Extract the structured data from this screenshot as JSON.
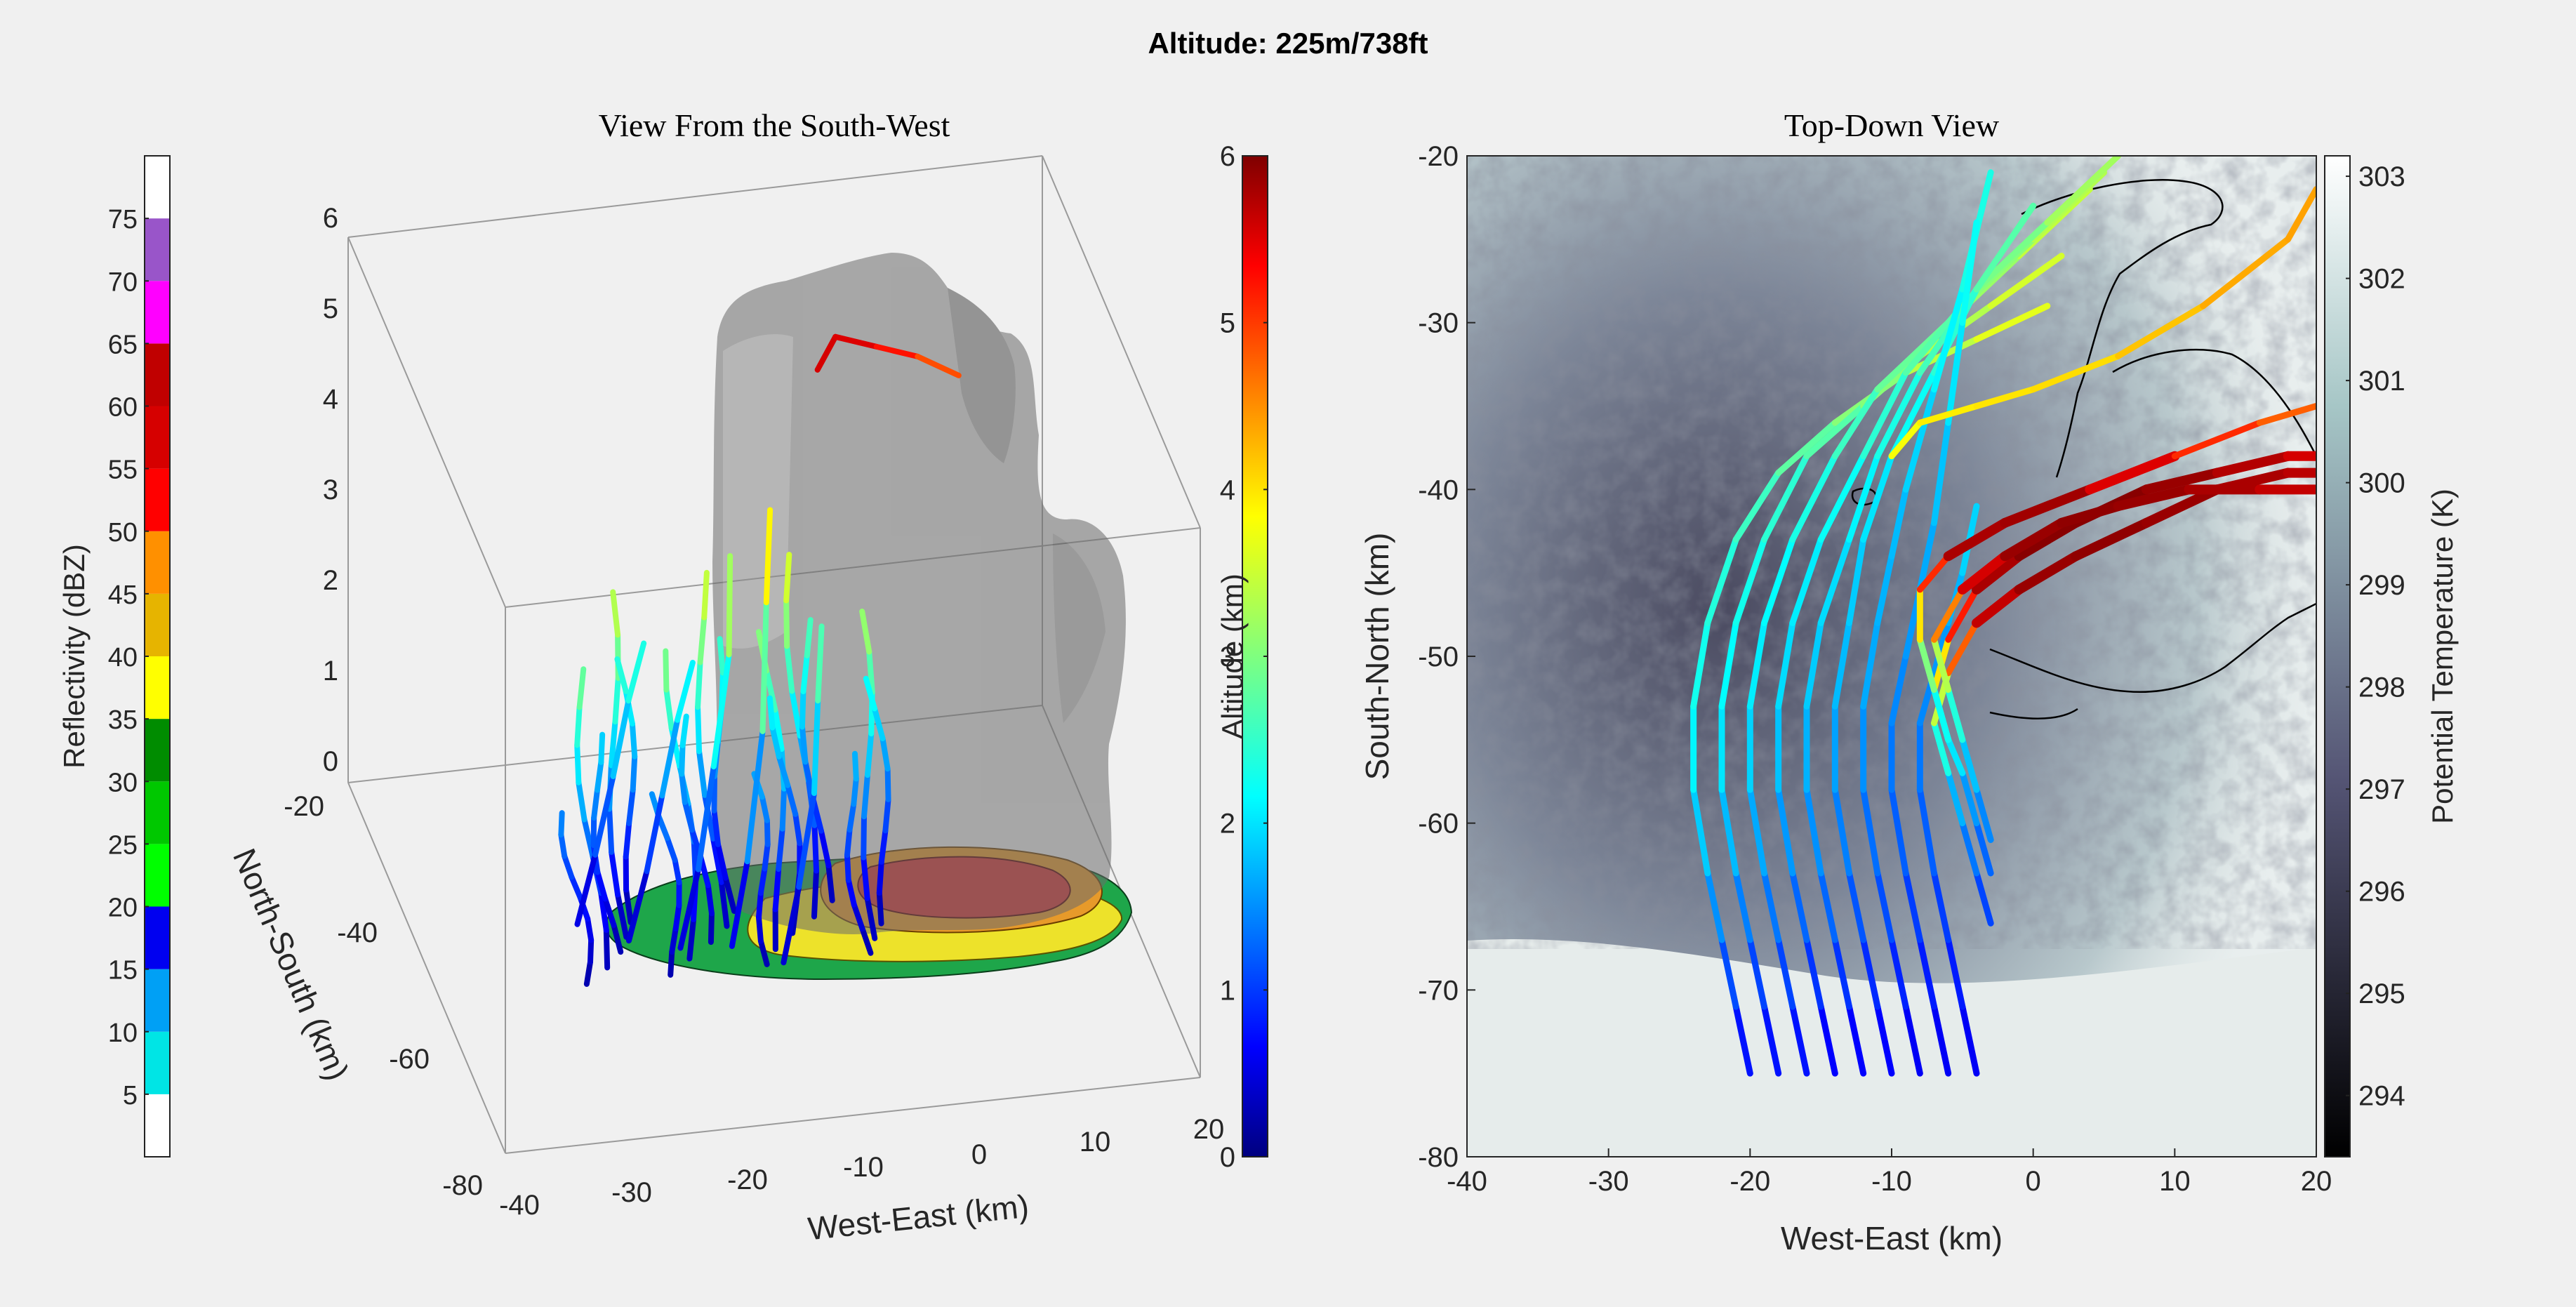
{
  "figure": {
    "suptitle": "Altitude: 225m/738ft",
    "background": "#f0f0f0"
  },
  "reflectivity_colorbar": {
    "label": "Reflectivity (dBZ)",
    "ticks": [
      "5",
      "10",
      "15",
      "20",
      "25",
      "30",
      "35",
      "40",
      "45",
      "50",
      "55",
      "60",
      "65",
      "70",
      "75"
    ],
    "levels": [
      0,
      5,
      10,
      15,
      20,
      25,
      30,
      35,
      40,
      45,
      50,
      55,
      60,
      65,
      70,
      75,
      80
    ],
    "colors": [
      "#ffffff",
      "#00e5e5",
      "#00a0f5",
      "#0000f0",
      "#00ff00",
      "#00c800",
      "#008c00",
      "#ffff00",
      "#e6b400",
      "#ff9000",
      "#ff0000",
      "#d60000",
      "#c00000",
      "#ff00ff",
      "#9955c9",
      "#ffffff"
    ]
  },
  "chart_data": [
    {
      "type": "scatter",
      "title": "View From the South-West",
      "xlabel": "West-East (km)",
      "ylabel": "North-South (km)",
      "zlabel": "",
      "xlim": [
        -40,
        20
      ],
      "ylim": [
        -80,
        -20
      ],
      "zlim": [
        0,
        6
      ],
      "xticks": [
        "-40",
        "-30",
        "-20",
        "-10",
        "0",
        "10",
        "20"
      ],
      "yticks": [
        "-80",
        "-60",
        "-40",
        "-20"
      ],
      "zticks": [
        "0",
        "1",
        "2",
        "3",
        "4",
        "5",
        "6"
      ],
      "series_note": "air-parcel trajectories coloured by altitude (km)",
      "trajectories": [
        {
          "x": [
            -27,
            -25,
            -23,
            -21,
            -19
          ],
          "y": [
            -50,
            -48,
            -46,
            -43,
            -40
          ],
          "z": [
            0.3,
            0.9,
            1.6,
            2.2,
            2.6
          ]
        },
        {
          "x": [
            -23,
            -21,
            -19,
            -17,
            -15
          ],
          "y": [
            -52,
            -50,
            -47,
            -44,
            -41
          ],
          "z": [
            0.2,
            0.8,
            1.4,
            2.0,
            2.4
          ]
        },
        {
          "x": [
            -19,
            -17,
            -15,
            -13,
            -12
          ],
          "y": [
            -54,
            -52,
            -49,
            -46,
            -42
          ],
          "z": [
            0.2,
            0.9,
            1.8,
            2.8,
            3.6
          ]
        },
        {
          "x": [
            -15,
            -13,
            -11,
            -10,
            -9
          ],
          "y": [
            -56,
            -53,
            -50,
            -47,
            -44
          ],
          "z": [
            0.3,
            1.0,
            2.2,
            3.4,
            4.2
          ]
        },
        {
          "x": [
            -11,
            -9,
            -7,
            -6,
            -5
          ],
          "y": [
            -58,
            -55,
            -52,
            -49,
            -46
          ],
          "z": [
            0.2,
            0.8,
            1.6,
            2.4,
            3.0
          ]
        },
        {
          "x": [
            -4,
            -2,
            2,
            6,
            10
          ],
          "y": [
            -40,
            -38,
            -36,
            -34,
            -32
          ],
          "z": [
            5.4,
            5.6,
            5.3,
            5.0,
            4.6
          ]
        }
      ]
    },
    {
      "type": "scatter",
      "title": "Top-Down View",
      "xlabel": "West-East (km)",
      "ylabel": "South-North (km)",
      "xlim": [
        -40,
        20
      ],
      "ylim": [
        -80,
        -20
      ],
      "xticks": [
        "-40",
        "-30",
        "-20",
        "-10",
        "0",
        "10",
        "20"
      ],
      "yticks": [
        "-80",
        "-70",
        "-60",
        "-50",
        "-40",
        "-30",
        "-20"
      ],
      "trajectories": [
        {
          "x": [
            -20,
            -21,
            -22,
            -23,
            -24,
            -24,
            -23,
            -21,
            -18,
            -14,
            -9,
            -4,
            1
          ],
          "y": [
            -75,
            -71,
            -67,
            -63,
            -58,
            -53,
            -48,
            -43,
            -39,
            -36,
            -33,
            -31,
            -29
          ],
          "z": [
            0.7,
            1.0,
            1.4,
            1.8,
            2.1,
            2.3,
            2.4,
            2.5,
            2.7,
            2.9,
            3.2,
            3.5,
            3.7
          ]
        },
        {
          "x": [
            -18,
            -19,
            -20,
            -21,
            -22,
            -22,
            -21,
            -19,
            -16,
            -12,
            -8,
            -3,
            2
          ],
          "y": [
            -75,
            -71,
            -67,
            -63,
            -58,
            -53,
            -48,
            -43,
            -38,
            -35,
            -32,
            -29,
            -26
          ],
          "z": [
            0.7,
            1.0,
            1.3,
            1.7,
            2.0,
            2.2,
            2.3,
            2.4,
            2.6,
            2.9,
            3.2,
            3.4,
            3.6
          ]
        },
        {
          "x": [
            -16,
            -17,
            -18,
            -19,
            -20,
            -20,
            -19,
            -17,
            -14,
            -11,
            -6,
            -1,
            4
          ],
          "y": [
            -75,
            -71,
            -67,
            -63,
            -58,
            -53,
            -48,
            -43,
            -38,
            -34,
            -30,
            -26,
            -22
          ],
          "z": [
            0.7,
            1.0,
            1.3,
            1.6,
            1.9,
            2.1,
            2.2,
            2.3,
            2.5,
            2.7,
            3.0,
            3.3,
            3.5
          ]
        },
        {
          "x": [
            -14,
            -15,
            -16,
            -17,
            -18,
            -18,
            -17,
            -15,
            -12,
            -9,
            -5,
            0,
            5
          ],
          "y": [
            -75,
            -71,
            -67,
            -63,
            -58,
            -53,
            -48,
            -43,
            -38,
            -33,
            -29,
            -25,
            -21
          ],
          "z": [
            0.6,
            0.9,
            1.2,
            1.5,
            1.8,
            2.0,
            2.1,
            2.2,
            2.4,
            2.6,
            2.9,
            3.2,
            3.4
          ]
        },
        {
          "x": [
            -12,
            -13,
            -14,
            -15,
            -16,
            -16,
            -15,
            -13,
            -11,
            -8,
            -4,
            1,
            6
          ],
          "y": [
            -75,
            -71,
            -67,
            -63,
            -58,
            -53,
            -48,
            -43,
            -38,
            -33,
            -28,
            -24,
            -20
          ],
          "z": [
            0.6,
            0.9,
            1.2,
            1.5,
            1.7,
            1.9,
            2.0,
            2.1,
            2.3,
            2.5,
            2.8,
            3.1,
            3.3
          ]
        },
        {
          "x": [
            -10,
            -11,
            -12,
            -13,
            -14,
            -14,
            -13,
            -12,
            -10,
            -7,
            -4,
            0
          ],
          "y": [
            -75,
            -71,
            -67,
            -63,
            -58,
            -53,
            -48,
            -43,
            -38,
            -33,
            -28,
            -23
          ],
          "z": [
            0.6,
            0.9,
            1.1,
            1.4,
            1.6,
            1.8,
            1.9,
            2.0,
            2.2,
            2.4,
            2.6,
            2.9
          ]
        },
        {
          "x": [
            -8,
            -9,
            -10,
            -11,
            -12,
            -12,
            -11,
            -10,
            -9,
            -7,
            -5,
            -3
          ],
          "y": [
            -75,
            -71,
            -67,
            -63,
            -58,
            -53,
            -48,
            -44,
            -40,
            -34,
            -28,
            -21
          ],
          "z": [
            0.6,
            0.8,
            1.1,
            1.3,
            1.5,
            1.7,
            1.8,
            1.8,
            1.9,
            2.1,
            2.3,
            2.5
          ]
        },
        {
          "x": [
            -6,
            -7,
            -8,
            -9,
            -10,
            -10,
            -9,
            -8,
            -7,
            -6,
            -5,
            -4
          ],
          "y": [
            -75,
            -71,
            -67,
            -63,
            -58,
            -54,
            -50,
            -46,
            -42,
            -36,
            -30,
            -24
          ],
          "z": [
            0.6,
            0.8,
            1.0,
            1.2,
            1.4,
            1.5,
            1.6,
            1.7,
            1.8,
            2.0,
            2.2,
            2.4
          ]
        },
        {
          "x": [
            -4,
            -5,
            -6,
            -7,
            -8,
            -8,
            -7,
            -6,
            -5,
            -4
          ],
          "y": [
            -75,
            -71,
            -67,
            -63,
            -58,
            -54,
            -51,
            -48,
            -45,
            -41
          ],
          "z": [
            0.6,
            0.8,
            1.0,
            1.2,
            1.4,
            1.5,
            1.6,
            1.7,
            1.9,
            2.1
          ]
        },
        {
          "x": [
            -3,
            -4,
            -5,
            -6,
            -7,
            -6,
            -4,
            -1,
            3,
            8,
            13,
            18,
            20
          ],
          "y": [
            -66,
            -63,
            -60,
            -57,
            -54,
            -51,
            -48,
            -46,
            -44,
            -42,
            -40,
            -39,
            -39
          ],
          "z": [
            1.0,
            1.3,
            1.6,
            2.0,
            2.8,
            4.0,
            5.4,
            5.8,
            5.9,
            5.9,
            5.8,
            5.7,
            5.6
          ]
        },
        {
          "x": [
            -3,
            -4,
            -5,
            -6,
            -7,
            -6,
            -4,
            -1,
            3,
            8,
            13,
            18,
            20
          ],
          "y": [
            -63,
            -60,
            -57,
            -55,
            -52,
            -49,
            -46,
            -44,
            -42,
            -40,
            -39,
            -38,
            -38
          ],
          "z": [
            1.2,
            1.5,
            1.8,
            2.4,
            3.2,
            4.6,
            5.6,
            5.9,
            6.0,
            5.9,
            5.8,
            5.6,
            5.4
          ]
        },
        {
          "x": [
            -3,
            -4,
            -5,
            -6,
            -7,
            -5,
            -2,
            2,
            6,
            11,
            16,
            20
          ],
          "y": [
            -61,
            -58,
            -55,
            -52,
            -49,
            -46,
            -44,
            -42,
            -41,
            -40,
            -40,
            -40
          ],
          "z": [
            1.4,
            1.7,
            2.1,
            2.8,
            3.8,
            5.2,
            5.8,
            5.9,
            5.9,
            5.8,
            5.7,
            5.5
          ]
        },
        {
          "x": [
            -6,
            -7,
            -8,
            -8,
            -6,
            -2,
            4,
            10,
            16,
            20
          ],
          "y": [
            -55,
            -52,
            -49,
            -46,
            -44,
            -42,
            -40,
            -38,
            -36,
            -35
          ],
          "z": [
            2.0,
            2.6,
            3.4,
            4.4,
            5.6,
            5.9,
            5.7,
            5.2,
            4.8,
            4.6
          ]
        },
        {
          "x": [
            -10,
            -8,
            -4,
            0,
            6,
            12,
            18,
            20
          ],
          "y": [
            -38,
            -36,
            -35,
            -34,
            -32,
            -29,
            -25,
            -22
          ],
          "z": [
            3.6,
            3.8,
            3.9,
            3.9,
            4.0,
            4.2,
            4.3,
            4.3
          ]
        }
      ]
    }
  ],
  "altitude_colorbar": {
    "label": "Altitude (km)",
    "ticks": [
      "0",
      "1",
      "2",
      "3",
      "4",
      "5",
      "6"
    ],
    "range": [
      0,
      6
    ]
  },
  "temperature_colorbar": {
    "label": "Potential Temperature (K)",
    "ticks": [
      "294",
      "295",
      "296",
      "297",
      "298",
      "299",
      "300",
      "301",
      "302",
      "303"
    ],
    "range": [
      293.4,
      303.2
    ]
  }
}
